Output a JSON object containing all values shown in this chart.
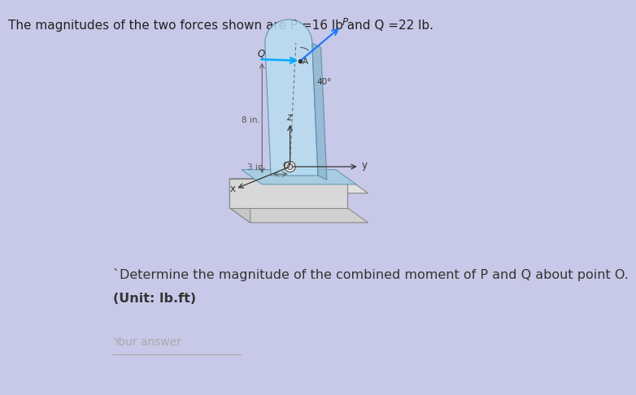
{
  "bg_color": "#c8c8e8",
  "panel1_color": "#ffffff",
  "panel2_color": "#ffffff",
  "title_text": "The magnitudes of the two forces shown are P =16 lb and Q =22 lb.",
  "title_color": "#222222",
  "title_fontsize": 11,
  "question_text": "ˋDetermine the magnitude of the combined moment of P and Q about point O.",
  "question_line2": "(Unit: lb.ft)",
  "question_color": "#333333",
  "question_fontsize": 11.5,
  "answer_label": "Your answer",
  "answer_color": "#aaaaaa",
  "answer_fontsize": 10,
  "plate_color": "#b0c4de",
  "plate_edge_color": "#888888",
  "base_color": "#c0c0c0",
  "base_edge_color": "#999999",
  "arrow_P_color": "#1a75ff",
  "arrow_Q_color": "#00aaff",
  "force_label_color": "#222222",
  "dim_color": "#555555",
  "label_8in": "8 in.",
  "label_3in": "3 in.",
  "label_40": "40°",
  "label_P": "P",
  "label_Q": "Q",
  "label_A": "A",
  "label_O": "O",
  "label_x": "x",
  "label_y": "y",
  "label_z": "z"
}
